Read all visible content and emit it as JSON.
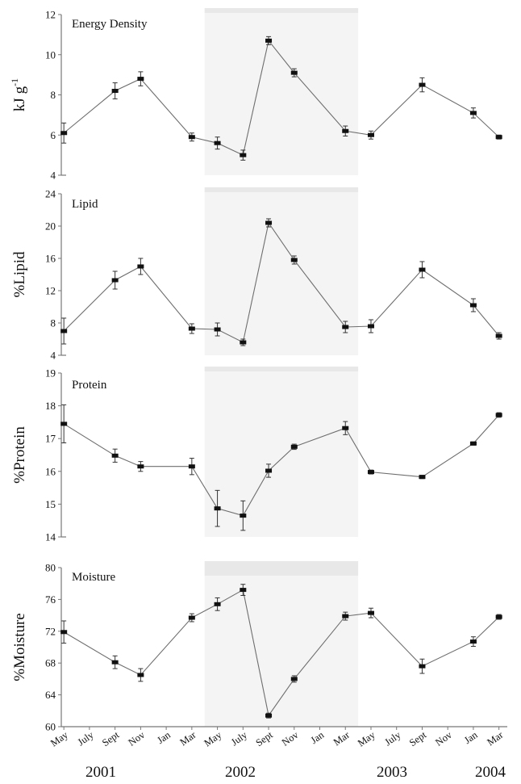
{
  "chart_data": [
    {
      "type": "line",
      "title": "Energy Density",
      "ylabel": "kJ g-1",
      "ylabel_main": "kJ g",
      "ylabel_sup": "-1",
      "ylim": [
        4,
        12
      ],
      "yticks": [
        4,
        6,
        8,
        10,
        12
      ],
      "x": [
        "2001-05",
        "2001-09",
        "2001-11",
        "2002-03",
        "2002-05",
        "2002-07",
        "2002-09",
        "2002-11",
        "2003-03",
        "2003-05",
        "2003-09",
        "2004-01",
        "2004-03"
      ],
      "values": [
        6.1,
        8.2,
        8.8,
        5.9,
        5.6,
        5.0,
        10.7,
        9.1,
        6.2,
        6.0,
        8.5,
        7.1,
        5.9
      ],
      "errors": [
        0.5,
        0.4,
        0.35,
        0.2,
        0.3,
        0.25,
        0.2,
        0.2,
        0.25,
        0.2,
        0.35,
        0.25,
        0.1
      ]
    },
    {
      "type": "line",
      "title": "Lipid",
      "ylabel": "%Lipid",
      "ylim": [
        4,
        24
      ],
      "yticks": [
        4,
        8,
        12,
        16,
        20,
        24
      ],
      "x": [
        "2001-05",
        "2001-09",
        "2001-11",
        "2002-03",
        "2002-05",
        "2002-07",
        "2002-09",
        "2002-11",
        "2003-03",
        "2003-05",
        "2003-09",
        "2004-01",
        "2004-03"
      ],
      "values": [
        7.0,
        13.3,
        15.0,
        7.3,
        7.2,
        5.6,
        20.4,
        15.8,
        7.5,
        7.6,
        14.6,
        10.2,
        6.4
      ],
      "errors": [
        1.6,
        1.1,
        1.0,
        0.6,
        0.8,
        0.4,
        0.5,
        0.5,
        0.7,
        0.8,
        1.0,
        0.8,
        0.4
      ]
    },
    {
      "type": "line",
      "title": "Protein",
      "ylabel": "%Protein",
      "ylim": [
        14,
        19
      ],
      "yticks": [
        14,
        15,
        16,
        17,
        18,
        19
      ],
      "x": [
        "2001-05",
        "2001-09",
        "2001-11",
        "2002-03",
        "2002-05",
        "2002-07",
        "2002-09",
        "2002-11",
        "2003-03",
        "2003-05",
        "2003-09",
        "2004-01",
        "2004-03"
      ],
      "values": [
        17.45,
        16.48,
        16.15,
        16.15,
        14.87,
        14.65,
        16.02,
        16.75,
        17.32,
        15.98,
        15.83,
        16.85,
        17.72
      ],
      "errors": [
        0.58,
        0.2,
        0.15,
        0.25,
        0.55,
        0.45,
        0.2,
        0.08,
        0.2,
        0.06,
        0.05,
        0.05,
        0.07
      ]
    },
    {
      "type": "line",
      "title": "Moisture",
      "ylabel": "%Moisture",
      "ylim": [
        60,
        80
      ],
      "yticks": [
        60,
        64,
        68,
        72,
        76,
        80
      ],
      "x": [
        "2001-05",
        "2001-09",
        "2001-11",
        "2002-03",
        "2002-05",
        "2002-07",
        "2002-09",
        "2002-11",
        "2003-03",
        "2003-05",
        "2003-09",
        "2004-01",
        "2004-03"
      ],
      "values": [
        71.9,
        68.1,
        66.5,
        73.7,
        75.4,
        77.2,
        61.4,
        66.0,
        73.9,
        74.3,
        67.6,
        70.7,
        73.8
      ],
      "errors": [
        1.4,
        0.8,
        0.8,
        0.5,
        0.8,
        0.7,
        0.3,
        0.4,
        0.5,
        0.6,
        0.9,
        0.6,
        0.3
      ]
    }
  ],
  "shaded_period": {
    "start": "2002-04",
    "end": "2003-04"
  },
  "x_axis": {
    "month_labels": [
      "May",
      "July",
      "Sept",
      "Nov",
      "Jan",
      "Mar",
      "May",
      "July",
      "Sept",
      "Nov",
      "Jan",
      "Mar",
      "May",
      "July",
      "Sept",
      "Nov",
      "Jan",
      "Mar"
    ],
    "month_dates": [
      "2001-05",
      "2001-07",
      "2001-09",
      "2001-11",
      "2002-01",
      "2002-03",
      "2002-05",
      "2002-07",
      "2002-09",
      "2002-11",
      "2003-01",
      "2003-03",
      "2003-05",
      "2003-07",
      "2003-09",
      "2003-11",
      "2004-01",
      "2004-03"
    ],
    "year_labels": [
      "2001",
      "2002",
      "2003",
      "2004"
    ]
  },
  "colors": {
    "line": "#6e6e6e",
    "marker": "#111111",
    "shade": "#f4f4f4",
    "shade_top": "#e8e8e8",
    "axis": "#777777"
  }
}
